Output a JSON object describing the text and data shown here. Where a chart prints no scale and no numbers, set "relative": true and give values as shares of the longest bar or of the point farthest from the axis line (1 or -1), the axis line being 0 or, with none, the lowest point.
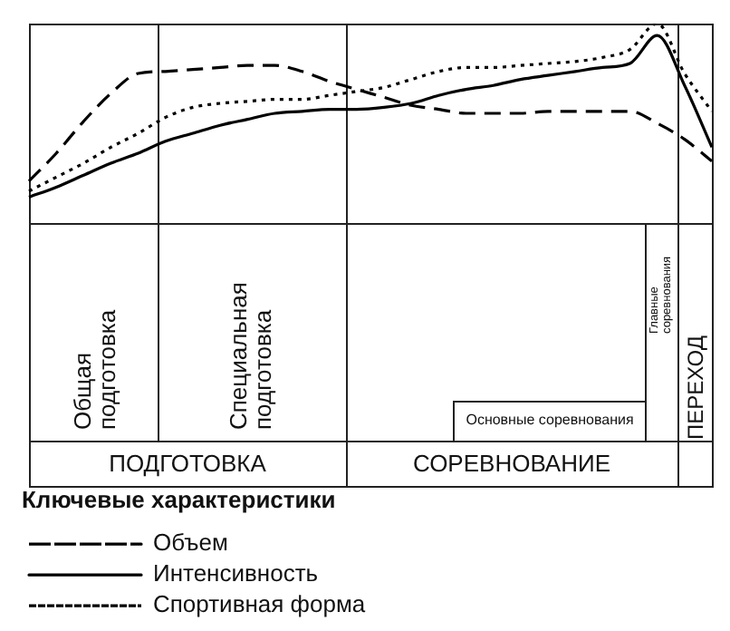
{
  "chart_data": {
    "type": "line",
    "relative": true,
    "categories": [
      null,
      null,
      null,
      null,
      null,
      null,
      null,
      null,
      null,
      null,
      null,
      null,
      null,
      null,
      null,
      null,
      null,
      null,
      null,
      null,
      null,
      null,
      null,
      null,
      null,
      null
    ],
    "series": [
      {
        "name": "Объем",
        "color": "#000000",
        "line_style": "dashed",
        "values": [
          0.21,
          0.35,
          0.51,
          0.65,
          0.75,
          0.76,
          0.77,
          0.78,
          0.79,
          0.79,
          0.76,
          0.71,
          0.67,
          0.63,
          0.59,
          0.57,
          0.55,
          0.55,
          0.55,
          0.56,
          0.56,
          0.56,
          0.56,
          0.5,
          0.42,
          0.31
        ]
      },
      {
        "name": "Интенсивность",
        "color": "#000000",
        "line_style": "solid",
        "values": [
          0.13,
          0.18,
          0.24,
          0.3,
          0.35,
          0.41,
          0.45,
          0.49,
          0.52,
          0.55,
          0.56,
          0.57,
          0.57,
          0.58,
          0.6,
          0.64,
          0.67,
          0.69,
          0.72,
          0.74,
          0.76,
          0.78,
          0.8,
          0.94,
          0.69,
          0.38
        ]
      },
      {
        "name": "Спортивная форма",
        "color": "#000000",
        "line_style": "dotted",
        "values": [
          0.16,
          0.23,
          0.3,
          0.38,
          0.45,
          0.53,
          0.58,
          0.6,
          0.61,
          0.62,
          0.62,
          0.64,
          0.66,
          0.68,
          0.72,
          0.76,
          0.78,
          0.78,
          0.79,
          0.8,
          0.81,
          0.83,
          0.87,
          1,
          0.75,
          0.56
        ]
      }
    ],
    "legend": "bottom",
    "legend_title": "Ключевые характеристики",
    "marker": "none",
    "annotations": [
      "Общая подготовка",
      "Специальная подготовка",
      "Основные соревнования",
      "Главные соревнования",
      "ПЕРЕХОД",
      "ПОДГОТОВКА",
      "СОРЕВНОВАНИЕ"
    ]
  }
}
